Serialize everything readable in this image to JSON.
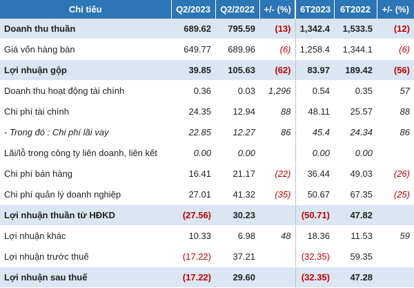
{
  "header": {
    "label": "Chỉ tiêu",
    "q2023": "Q2/2023",
    "q2022": "Q2/2022",
    "q_change": "+/- (%)",
    "h2023": "6T2023",
    "h2022": "6T2022",
    "h_change": "+/- (%)"
  },
  "rows": [
    {
      "label": "Doanh thu thuần",
      "q2023": "689.62",
      "q2022": "795.59",
      "q_change": "(13)",
      "h2023": "1,342.4",
      "h2022": "1,533.5",
      "h_change": "(12)"
    },
    {
      "label": "Giá vốn hàng bán",
      "q2023": "649.77",
      "q2022": "689.96",
      "q_change": "(6)",
      "h2023": "1,258.4",
      "h2022": "1,344.1",
      "h_change": "(6)"
    },
    {
      "label": "Lợi nhuận gộp",
      "q2023": "39.85",
      "q2022": "105.63",
      "q_change": "(62)",
      "h2023": "83.97",
      "h2022": "189.42",
      "h_change": "(56)"
    },
    {
      "label": "Doanh thu hoạt động tài chính",
      "q2023": "0.36",
      "q2022": "0.03",
      "q_change": "1,296",
      "h2023": "0.54",
      "h2022": "0.35",
      "h_change": "57"
    },
    {
      "label": "Chi phí tài chính",
      "q2023": "24.35",
      "q2022": "12.94",
      "q_change": "88",
      "h2023": "48.11",
      "h2022": "25.57",
      "h_change": "88"
    },
    {
      "label": "- Trong đó : Chi phí lãi vay",
      "q2023": "22.85",
      "q2022": "12.27",
      "q_change": "86",
      "h2023": "45.4",
      "h2022": "24.34",
      "h_change": "86"
    },
    {
      "label": "Lãi/lỗ trong công ty liên doanh, liên kết",
      "q2023": "0.00",
      "q2022": "0.00",
      "q_change": "",
      "h2023": "0.00",
      "h2022": "0.00",
      "h_change": ""
    },
    {
      "label": "Chi phí bán hàng",
      "q2023": "16.41",
      "q2022": "21.17",
      "q_change": "(22)",
      "h2023": "36.44",
      "h2022": "49.03",
      "h_change": "(26)"
    },
    {
      "label": "Chi phí quản lý doanh nghiệp",
      "q2023": "27.01",
      "q2022": "41.32",
      "q_change": "(35)",
      "h2023": "50.67",
      "h2022": "67.35",
      "h_change": "(25)"
    },
    {
      "label": "Lợi nhuận thuần từ HĐKD",
      "q2023": "(27.56)",
      "q2022": "30.23",
      "q_change": "",
      "h2023": "(50.71)",
      "h2022": "47.82",
      "h_change": ""
    },
    {
      "label": "Lợi nhuận khác",
      "q2023": "10.33",
      "q2022": "6.98",
      "q_change": "48",
      "h2023": "18.36",
      "h2022": "11.53",
      "h_change": "59"
    },
    {
      "label": "Lợi nhuận trước thuế",
      "q2023": "(17.22)",
      "q2022": "37.21",
      "q_change": "",
      "h2023": "(32.35)",
      "h2022": "59.35",
      "h_change": ""
    },
    {
      "label": "Lợi nhuận sau thuế",
      "q2023": "(17.22)",
      "q2022": "29.60",
      "q_change": "",
      "h2023": "(32.35)",
      "h2022": "47.28",
      "h_change": ""
    }
  ],
  "colors": {
    "header_bg": "#2c75b6",
    "highlight_bg": "#dce6f2",
    "negative": "#c00000"
  }
}
